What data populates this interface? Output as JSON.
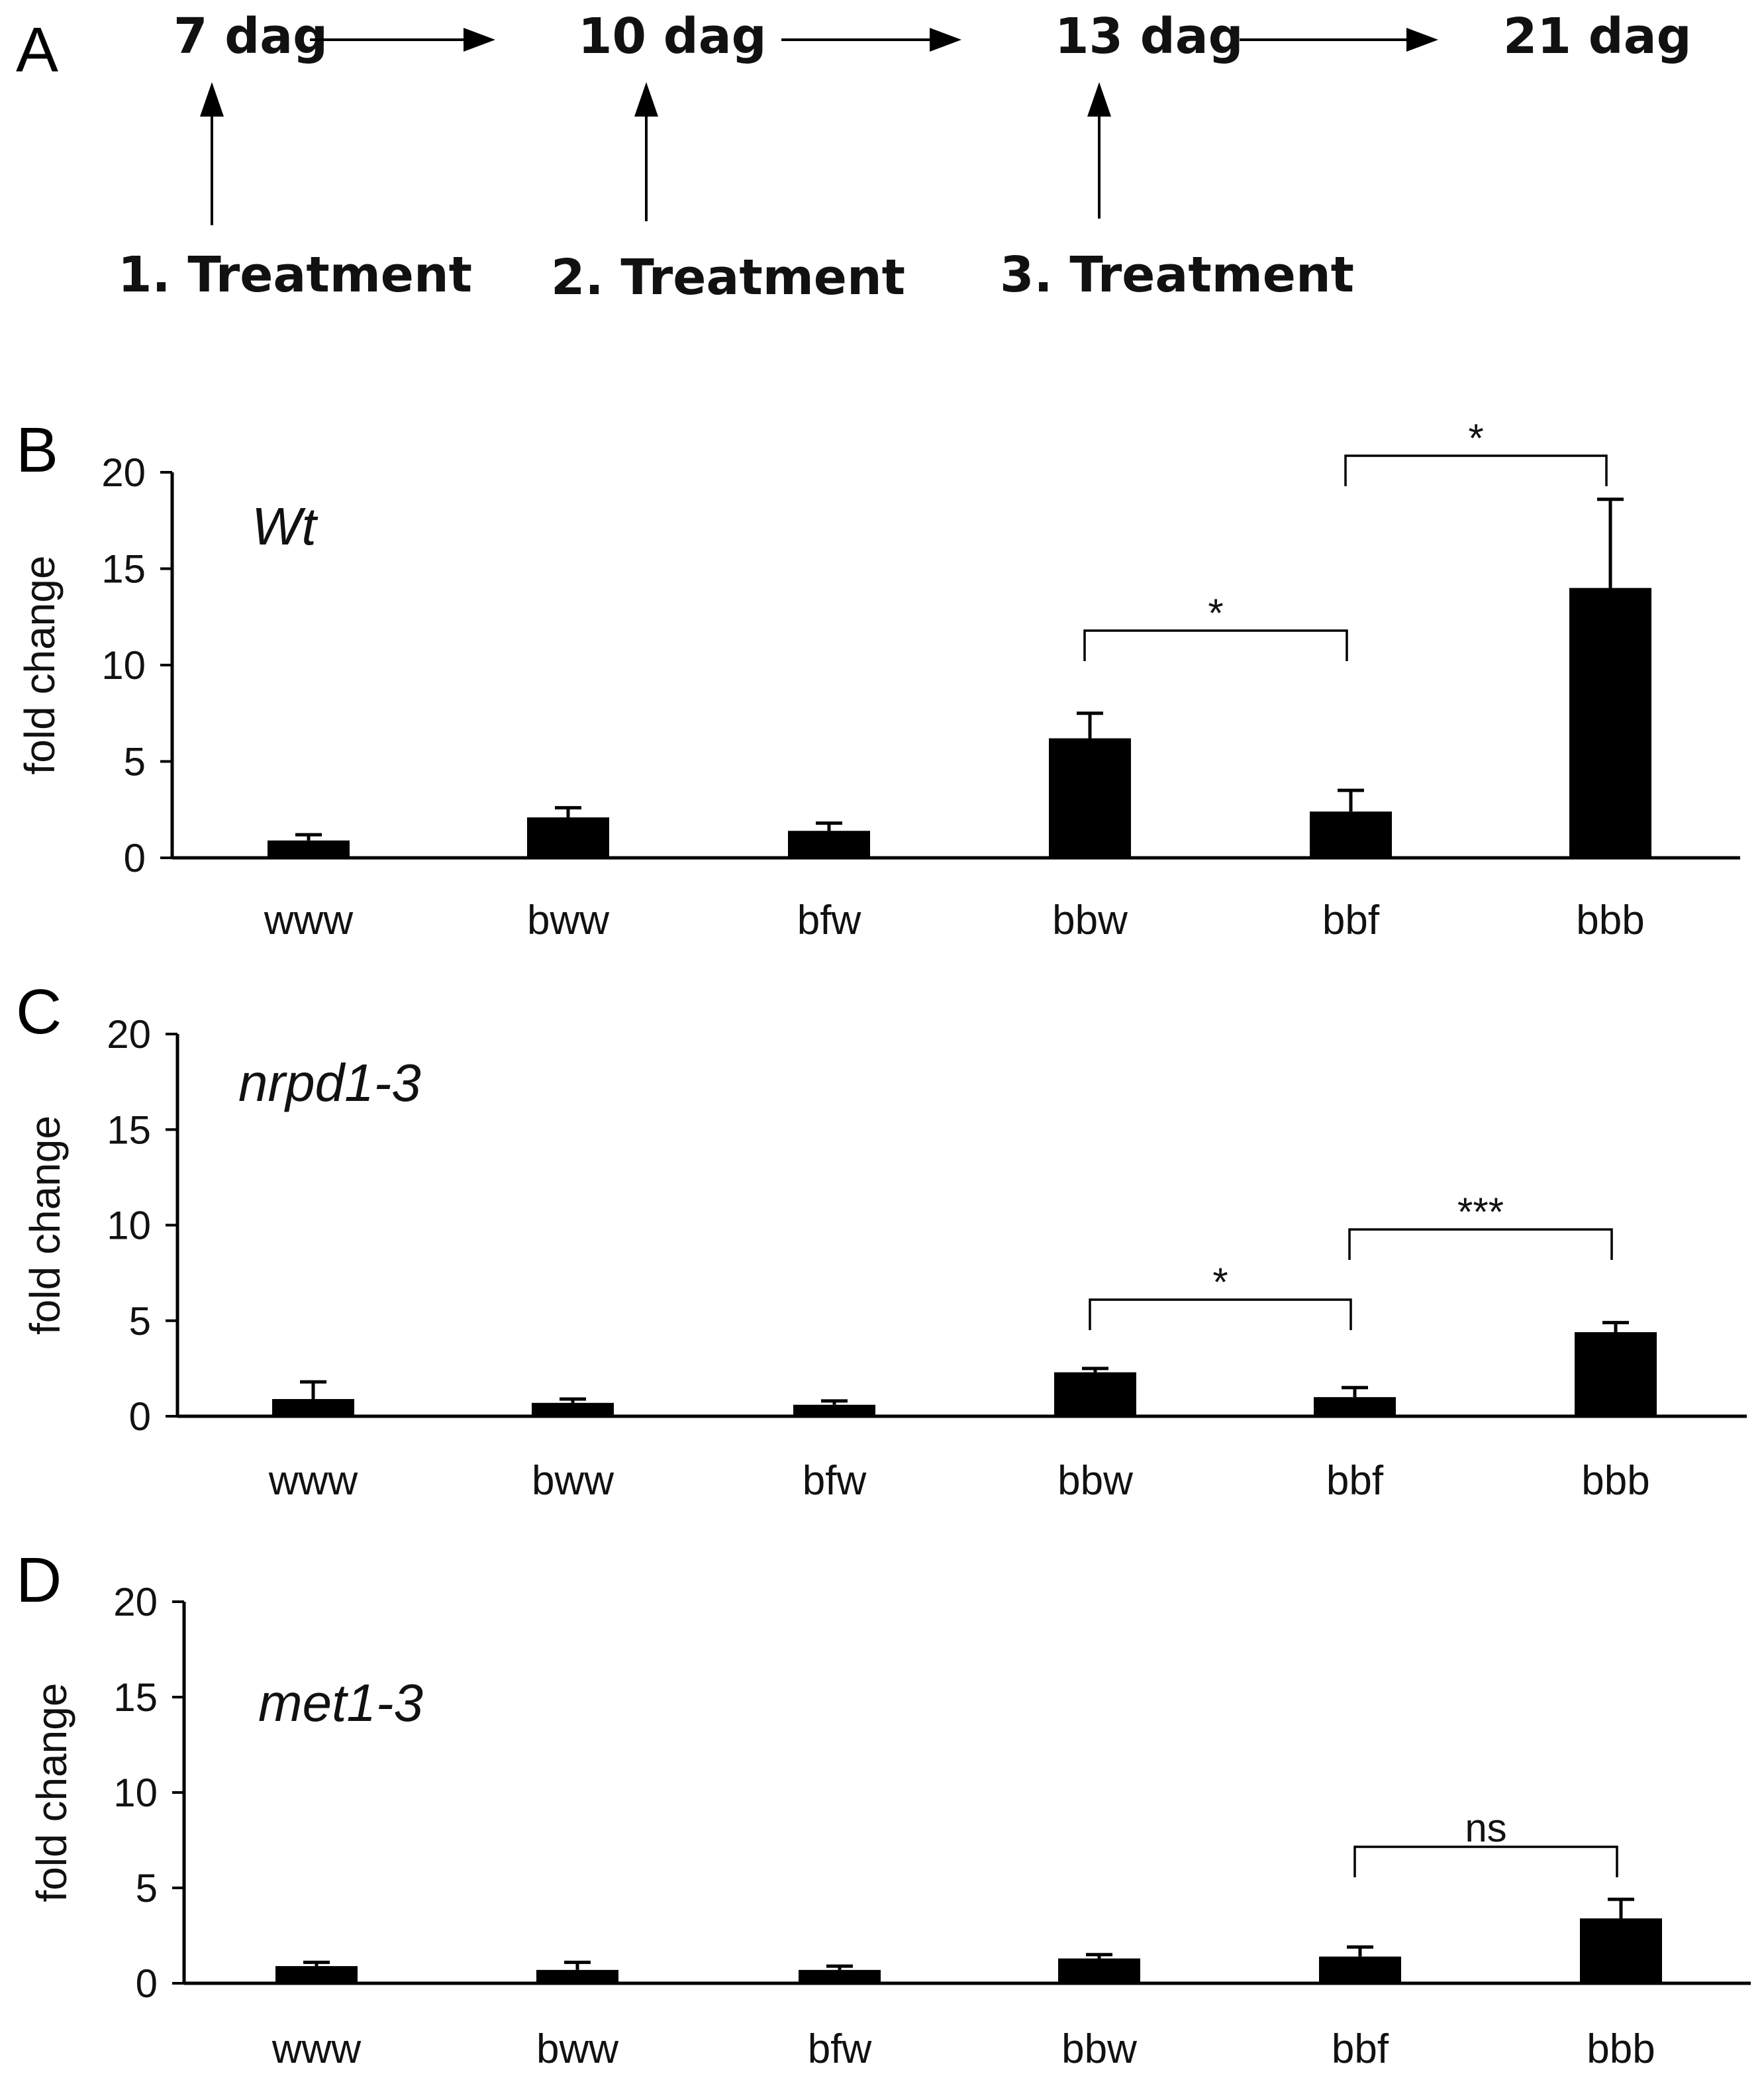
{
  "panel_a": {
    "letter": "A",
    "timepoints": [
      "7 dag",
      "10 dag",
      "13 dag",
      "21 dag"
    ],
    "treatments": [
      "1. Treatment",
      "2. Treatment",
      "3. Treatment"
    ]
  },
  "chart_data": [
    {
      "type": "bar",
      "panel": "B",
      "genotype": "Wt",
      "ylabel": "fold change",
      "ylim": [
        0,
        20
      ],
      "yticks": [
        "0",
        "5",
        "10",
        "15",
        "20"
      ],
      "categories": [
        "www",
        "bww",
        "bfw",
        "bbw",
        "bbf",
        "bbb"
      ],
      "values": [
        0.9,
        2.1,
        1.4,
        6.2,
        2.4,
        14.0
      ],
      "errors": [
        0.3,
        0.5,
        0.4,
        1.3,
        1.1,
        4.6
      ],
      "significance": [
        {
          "from": 3,
          "to": 4,
          "label": "*"
        },
        {
          "from": 4,
          "to": 5,
          "label": "*"
        }
      ]
    },
    {
      "type": "bar",
      "panel": "C",
      "genotype": "nrpd1-3",
      "ylabel": "fold change",
      "ylim": [
        0,
        20
      ],
      "yticks": [
        "0",
        "5",
        "10",
        "15",
        "20"
      ],
      "categories": [
        "www",
        "bww",
        "bfw",
        "bbw",
        "bbf",
        "bbb"
      ],
      "values": [
        0.9,
        0.7,
        0.6,
        2.3,
        1.0,
        4.4
      ],
      "errors": [
        0.9,
        0.2,
        0.2,
        0.2,
        0.5,
        0.5
      ],
      "significance": [
        {
          "from": 3,
          "to": 4,
          "label": "*"
        },
        {
          "from": 4,
          "to": 5,
          "label": "***"
        }
      ]
    },
    {
      "type": "bar",
      "panel": "D",
      "genotype": "met1-3",
      "ylabel": "fold change",
      "ylim": [
        0,
        20
      ],
      "yticks": [
        "0",
        "5",
        "10",
        "15",
        "20"
      ],
      "categories": [
        "www",
        "bww",
        "bfw",
        "bbw",
        "bbf",
        "bbb"
      ],
      "values": [
        0.9,
        0.7,
        0.7,
        1.3,
        1.4,
        3.4
      ],
      "errors": [
        0.2,
        0.4,
        0.2,
        0.2,
        0.5,
        1.0
      ],
      "significance": [
        {
          "from": 4,
          "to": 5,
          "label": "ns"
        }
      ]
    }
  ]
}
